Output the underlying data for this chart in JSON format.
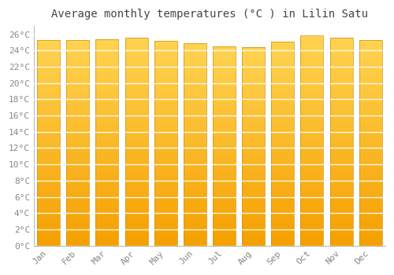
{
  "title": "Average monthly temperatures (°C ) in Lilin Satu",
  "months": [
    "Jan",
    "Feb",
    "Mar",
    "Apr",
    "May",
    "Jun",
    "Jul",
    "Aug",
    "Sep",
    "Oct",
    "Nov",
    "Dec"
  ],
  "temperatures": [
    25.3,
    25.3,
    25.4,
    25.6,
    25.2,
    24.9,
    24.5,
    24.4,
    25.1,
    25.9,
    25.6,
    25.3
  ],
  "bar_color_main": "#F5A800",
  "bar_color_top": "#FFD060",
  "bar_color_bottom": "#F5A000",
  "bar_edge_color": "#C8900A",
  "background_color": "#FFFFFF",
  "plot_bg_color": "#FFFFFF",
  "grid_color": "#DDDDDD",
  "ylim": [
    0,
    27
  ],
  "ytick_step": 2,
  "title_fontsize": 10,
  "tick_fontsize": 8,
  "tick_label_color": "#888888",
  "title_color": "#444444",
  "spine_color": "#BBBBBB"
}
